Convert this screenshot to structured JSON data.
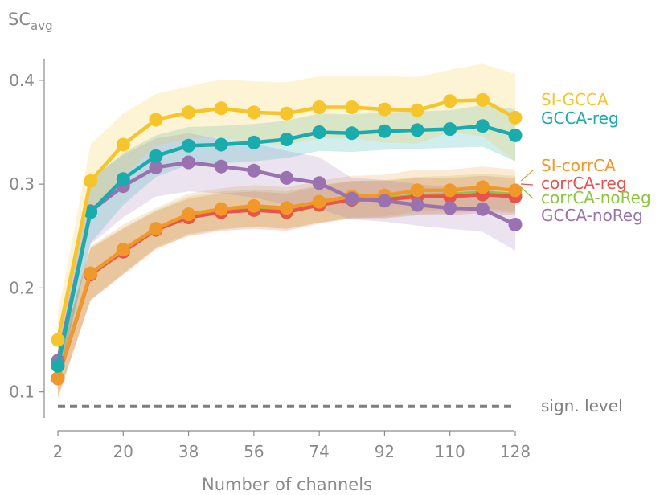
{
  "chart_data": {
    "type": "line",
    "title": "",
    "xlabel": "Number of channels",
    "ylabel_main": "SC",
    "ylabel_sub": "avg",
    "xlim": [
      2,
      128
    ],
    "ylim": [
      0.075,
      0.42
    ],
    "xticks": [
      2,
      20,
      38,
      56,
      74,
      92,
      110,
      128
    ],
    "yticks": [
      0.1,
      0.2,
      0.3,
      0.4
    ],
    "ytick_labels": [
      "0.1",
      "0.2",
      "0.3",
      "0.4"
    ],
    "x": [
      2,
      11,
      20,
      29,
      38,
      47,
      56,
      65,
      74,
      83,
      92,
      101,
      110,
      119,
      128
    ],
    "series": [
      {
        "name": "corrCA-noReg",
        "color": "#8cc63f",
        "values": [
          0.113,
          0.214,
          0.236,
          0.257,
          0.27,
          0.275,
          0.277,
          0.275,
          0.281,
          0.285,
          0.286,
          0.289,
          0.29,
          0.292,
          0.29
        ],
        "band": [
          0.018,
          0.025,
          0.022,
          0.018,
          0.018,
          0.018,
          0.018,
          0.018,
          0.018,
          0.018,
          0.018,
          0.018,
          0.018,
          0.018,
          0.018
        ]
      },
      {
        "name": "corrCA-reg",
        "color": "#e8534a",
        "values": [
          0.113,
          0.213,
          0.235,
          0.256,
          0.268,
          0.273,
          0.275,
          0.273,
          0.28,
          0.285,
          0.285,
          0.288,
          0.288,
          0.29,
          0.288
        ],
        "band": [
          0.018,
          0.025,
          0.022,
          0.018,
          0.018,
          0.018,
          0.018,
          0.018,
          0.018,
          0.018,
          0.018,
          0.018,
          0.018,
          0.018,
          0.018
        ]
      },
      {
        "name": "SI-corrCA",
        "color": "#f0982a",
        "values": [
          0.113,
          0.214,
          0.237,
          0.257,
          0.271,
          0.276,
          0.279,
          0.277,
          0.283,
          0.288,
          0.289,
          0.294,
          0.294,
          0.297,
          0.294
        ],
        "band": [
          0.02,
          0.026,
          0.024,
          0.02,
          0.02,
          0.02,
          0.02,
          0.02,
          0.02,
          0.02,
          0.02,
          0.02,
          0.02,
          0.02,
          0.02
        ]
      },
      {
        "name": "GCCA-noReg",
        "color": "#9b72b0",
        "values": [
          0.13,
          0.274,
          0.298,
          0.316,
          0.321,
          0.317,
          0.313,
          0.306,
          0.301,
          0.286,
          0.284,
          0.28,
          0.277,
          0.276,
          0.261
        ],
        "band": [
          0.02,
          0.032,
          0.03,
          0.028,
          0.028,
          0.026,
          0.026,
          0.026,
          0.025,
          0.02,
          0.02,
          0.02,
          0.02,
          0.022,
          0.025
        ]
      },
      {
        "name": "GCCA-reg",
        "color": "#1aacac",
        "values": [
          0.125,
          0.273,
          0.305,
          0.327,
          0.337,
          0.338,
          0.34,
          0.343,
          0.35,
          0.349,
          0.351,
          0.352,
          0.353,
          0.356,
          0.347
        ],
        "band": [
          0.02,
          0.03,
          0.025,
          0.02,
          0.018,
          0.018,
          0.018,
          0.018,
          0.018,
          0.018,
          0.018,
          0.018,
          0.018,
          0.02,
          0.025
        ]
      },
      {
        "name": "SI-GCCA",
        "color": "#f5c52b",
        "values": [
          0.15,
          0.303,
          0.338,
          0.362,
          0.369,
          0.373,
          0.369,
          0.368,
          0.374,
          0.374,
          0.372,
          0.371,
          0.38,
          0.381,
          0.364
        ],
        "band": [
          0.025,
          0.035,
          0.03,
          0.025,
          0.025,
          0.028,
          0.03,
          0.03,
          0.03,
          0.03,
          0.032,
          0.032,
          0.03,
          0.035,
          0.042
        ]
      }
    ],
    "legend": [
      {
        "name": "SI-GCCA",
        "color": "#f5c52b"
      },
      {
        "name": "GCCA-reg",
        "color": "#1aacac"
      },
      {
        "name": "SI-corrCA",
        "color": "#f0982a"
      },
      {
        "name": "corrCA-reg",
        "color": "#e8534a"
      },
      {
        "name": "corrCA-noReg",
        "color": "#8cc63f"
      },
      {
        "name": "GCCA-noReg",
        "color": "#9b72b0"
      }
    ],
    "legend_placement": "right",
    "significance": {
      "label": "sign. level",
      "value": 0.086,
      "color": "#7f7f7f"
    }
  }
}
